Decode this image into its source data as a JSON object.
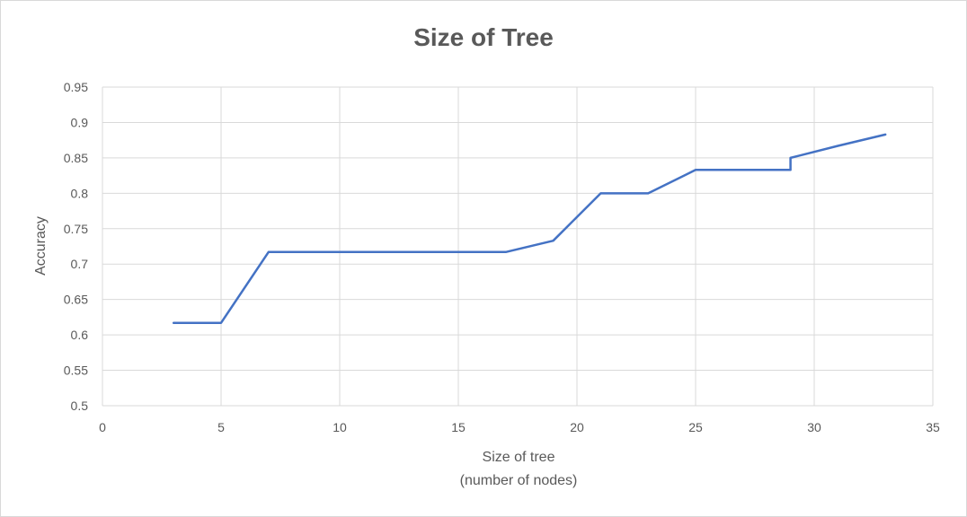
{
  "chart_data": {
    "type": "line",
    "title": "Size of Tree",
    "xlabel_lines": [
      "Size of tree",
      "(number of nodes)"
    ],
    "ylabel": "Accuracy",
    "xlim": [
      0,
      35
    ],
    "ylim": [
      0.5,
      0.95
    ],
    "x_ticks": [
      0,
      5,
      10,
      15,
      20,
      25,
      30,
      35
    ],
    "y_ticks": [
      0.5,
      0.55,
      0.6,
      0.65,
      0.7,
      0.75,
      0.8,
      0.85,
      0.9,
      0.95
    ],
    "grid": true,
    "legend": "none",
    "series": [
      {
        "color": "#4472c4",
        "x": [
          3,
          5,
          7,
          9,
          11,
          13,
          15,
          17,
          19,
          21,
          23,
          25,
          27,
          29,
          29,
          31,
          33
        ],
        "y": [
          0.617,
          0.617,
          0.717,
          0.717,
          0.717,
          0.717,
          0.717,
          0.717,
          0.733,
          0.8,
          0.8,
          0.833,
          0.833,
          0.833,
          0.85,
          0.867,
          0.883
        ]
      }
    ]
  }
}
